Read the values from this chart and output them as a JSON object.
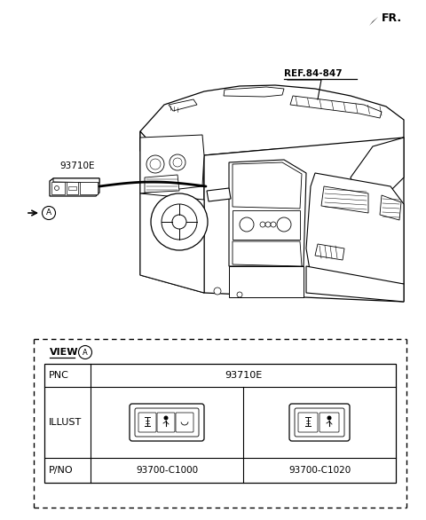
{
  "bg_color": "#ffffff",
  "fig_width": 4.8,
  "fig_height": 5.86,
  "dpi": 100,
  "fr_label": "FR.",
  "ref_label": "REF.84-847",
  "part_number_label": "93710E",
  "view_label": "VIEW",
  "pnc_label": "PNC",
  "illust_label": "ILLUST",
  "pno_label": "P/NO",
  "pno_1": "93700-C1000",
  "pno_2": "93700-C1020",
  "callout_label": "93710E",
  "circle_a_label": "A",
  "line_color": "#000000",
  "fill_color": "#ffffff"
}
